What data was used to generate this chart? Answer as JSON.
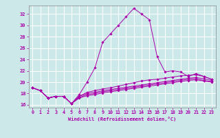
{
  "xlabel": "Windchill (Refroidissement éolien,°C)",
  "ylabel": "",
  "background_color": "#cce8e8",
  "grid_color": "#ffffff",
  "line_color": "#aa00aa",
  "xlim": [
    -0.5,
    23.5
  ],
  "ylim": [
    15.5,
    33.5
  ],
  "xticks": [
    0,
    1,
    2,
    3,
    4,
    5,
    6,
    7,
    8,
    9,
    10,
    11,
    12,
    13,
    14,
    15,
    16,
    17,
    18,
    19,
    20,
    21,
    22,
    23
  ],
  "yticks": [
    16,
    18,
    20,
    22,
    24,
    26,
    28,
    30,
    32
  ],
  "lines": [
    {
      "x": [
        0,
        1,
        2,
        3,
        4,
        5,
        6,
        7,
        8,
        9,
        10,
        11,
        12,
        13,
        14,
        15,
        16,
        17,
        18,
        19,
        20,
        21,
        22,
        23
      ],
      "y": [
        19.0,
        18.5,
        17.2,
        17.5,
        17.5,
        16.2,
        17.8,
        20.0,
        22.5,
        27.0,
        28.5,
        30.0,
        31.5,
        33.0,
        32.0,
        31.0,
        24.5,
        21.8,
        22.0,
        21.8,
        21.0,
        21.5,
        21.0,
        20.5
      ]
    },
    {
      "x": [
        0,
        1,
        2,
        3,
        4,
        5,
        6,
        7,
        8,
        9,
        10,
        11,
        12,
        13,
        14,
        15,
        16,
        17,
        18,
        19,
        20,
        21,
        22,
        23
      ],
      "y": [
        19.0,
        18.5,
        17.2,
        17.5,
        17.5,
        16.2,
        17.5,
        18.2,
        18.5,
        18.8,
        19.0,
        19.3,
        19.6,
        19.9,
        20.2,
        20.4,
        20.5,
        20.7,
        20.9,
        21.1,
        21.2,
        21.3,
        21.0,
        20.5
      ]
    },
    {
      "x": [
        0,
        1,
        2,
        3,
        4,
        5,
        6,
        7,
        8,
        9,
        10,
        11,
        12,
        13,
        14,
        15,
        16,
        17,
        18,
        19,
        20,
        21,
        22,
        23
      ],
      "y": [
        19.0,
        18.5,
        17.2,
        17.5,
        17.5,
        16.2,
        17.5,
        18.0,
        18.2,
        18.5,
        18.7,
        18.9,
        19.1,
        19.3,
        19.5,
        19.7,
        19.9,
        20.1,
        20.3,
        20.5,
        20.7,
        20.8,
        20.6,
        20.3
      ]
    },
    {
      "x": [
        0,
        1,
        2,
        3,
        4,
        5,
        6,
        7,
        8,
        9,
        10,
        11,
        12,
        13,
        14,
        15,
        16,
        17,
        18,
        19,
        20,
        21,
        22,
        23
      ],
      "y": [
        19.0,
        18.5,
        17.2,
        17.5,
        17.5,
        16.2,
        17.3,
        17.8,
        18.0,
        18.3,
        18.5,
        18.7,
        18.9,
        19.1,
        19.3,
        19.5,
        19.7,
        19.9,
        20.1,
        20.3,
        20.5,
        20.6,
        20.3,
        20.1
      ]
    },
    {
      "x": [
        0,
        1,
        2,
        3,
        4,
        5,
        6,
        7,
        8,
        9,
        10,
        11,
        12,
        13,
        14,
        15,
        16,
        17,
        18,
        19,
        20,
        21,
        22,
        23
      ],
      "y": [
        19.0,
        18.5,
        17.2,
        17.5,
        17.5,
        16.2,
        17.2,
        17.6,
        17.8,
        18.1,
        18.3,
        18.5,
        18.7,
        18.9,
        19.1,
        19.3,
        19.5,
        19.7,
        19.9,
        20.1,
        20.3,
        20.4,
        20.2,
        20.0
      ]
    }
  ]
}
